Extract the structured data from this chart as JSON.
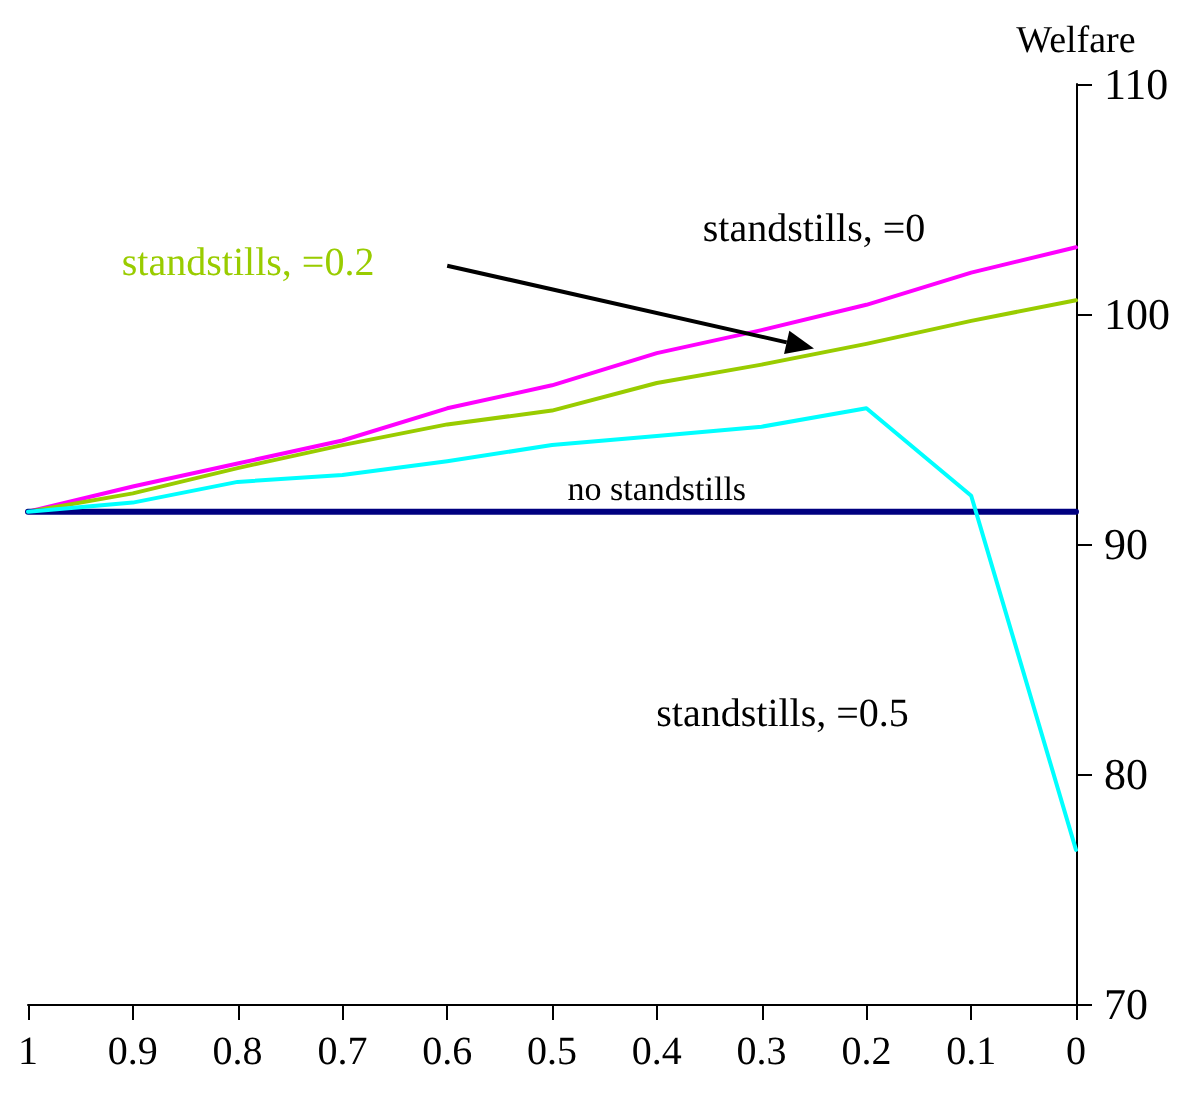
{
  "chart_data": {
    "type": "line",
    "ylabel": "Welfare",
    "x": [
      1,
      0.9,
      0.8,
      0.7,
      0.6,
      0.5,
      0.4,
      0.3,
      0.2,
      0.1,
      0
    ],
    "xlim": [
      1,
      0
    ],
    "xticks": [
      1,
      0.9,
      0.8,
      0.7,
      0.6,
      0.5,
      0.4,
      0.3,
      0.2,
      0.1,
      0
    ],
    "ylim": [
      70,
      110
    ],
    "yticks": [
      70,
      80,
      90,
      100,
      110
    ],
    "grid": false,
    "legend": false,
    "marker": "none",
    "line_style": "solid",
    "series": [
      {
        "name": "standstills, =0",
        "color": "#ff00ff",
        "values": [
          91.4,
          92.5,
          93.5,
          94.5,
          95.9,
          96.9,
          98.3,
          99.3,
          100.4,
          101.8,
          102.9
        ]
      },
      {
        "name": "standstills, =0.2",
        "color": "#99cc00",
        "values": [
          91.4,
          92.2,
          93.3,
          94.3,
          95.2,
          95.8,
          97.0,
          97.8,
          98.7,
          99.7,
          100.6
        ]
      },
      {
        "name": "no standstills",
        "color": "#000080",
        "values": [
          91.4,
          91.4,
          91.4,
          91.4,
          91.4,
          91.4,
          91.4,
          91.4,
          91.4,
          91.4,
          91.4
        ]
      },
      {
        "name": "standstills, =0.5",
        "color": "#00ffff",
        "values": [
          91.4,
          91.8,
          92.7,
          93.0,
          93.6,
          94.3,
          94.7,
          95.1,
          95.9,
          92.1,
          76.7
        ]
      }
    ]
  }
}
